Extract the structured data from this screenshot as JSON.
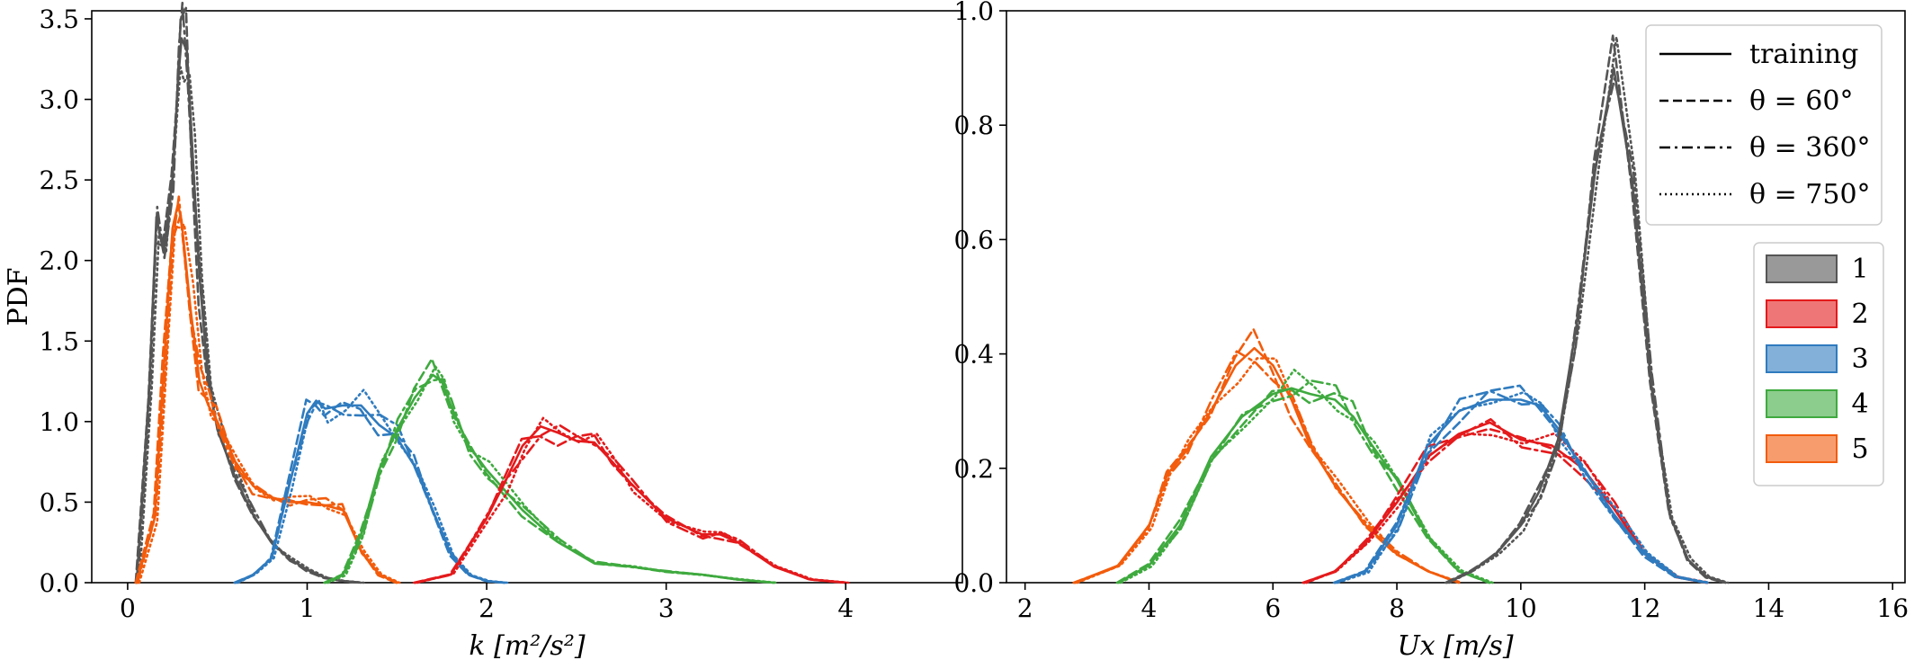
{
  "colors": {
    "1": "#555555",
    "2": "#e41a1c",
    "3": "#2f7bbf",
    "4": "#3faa3f",
    "5": "#f25c0c"
  },
  "chart_data": [
    {
      "type": "line",
      "title": "",
      "xlabel": "k [m²/s²]",
      "ylabel": "PDF",
      "xlim": [
        -0.2,
        4.65
      ],
      "ylim": [
        0,
        3.55
      ],
      "xticks": [
        0,
        1,
        2,
        3,
        4
      ],
      "xtick_labels": [
        "0",
        "1",
        "2",
        "3",
        "4"
      ],
      "yticks": [
        0.0,
        0.5,
        1.0,
        1.5,
        2.0,
        2.5,
        3.0,
        3.5
      ],
      "ytick_labels": [
        "0.0",
        "0.5",
        "1.0",
        "1.5",
        "2.0",
        "2.5",
        "3.0",
        "3.5"
      ],
      "grid": false,
      "series": [
        {
          "group": "1",
          "x": [
            0.05,
            0.12,
            0.16,
            0.2,
            0.25,
            0.28,
            0.3,
            0.33,
            0.36,
            0.4,
            0.45,
            0.5,
            0.6,
            0.7,
            0.8,
            0.9,
            1.0,
            1.1,
            1.2,
            1.3
          ],
          "y": [
            0,
            1.2,
            2.27,
            2.05,
            2.5,
            3.1,
            3.38,
            3.3,
            2.7,
            1.9,
            1.25,
            0.95,
            0.65,
            0.42,
            0.25,
            0.15,
            0.08,
            0.03,
            0.01,
            0
          ]
        },
        {
          "group": "5",
          "x": [
            0.05,
            0.15,
            0.2,
            0.25,
            0.28,
            0.3,
            0.35,
            0.4,
            0.45,
            0.5,
            0.6,
            0.7,
            0.8,
            0.9,
            1.0,
            1.1,
            1.2,
            1.3,
            1.4,
            1.5
          ],
          "y": [
            0,
            0.4,
            1.3,
            2.2,
            2.35,
            2.25,
            1.7,
            1.25,
            1.1,
            1.0,
            0.75,
            0.6,
            0.53,
            0.5,
            0.5,
            0.48,
            0.45,
            0.2,
            0.05,
            0
          ]
        },
        {
          "group": "3",
          "x": [
            0.6,
            0.7,
            0.8,
            0.9,
            1.0,
            1.05,
            1.1,
            1.2,
            1.3,
            1.4,
            1.5,
            1.6,
            1.7,
            1.8,
            1.9,
            2.0,
            2.1
          ],
          "y": [
            0,
            0.05,
            0.15,
            0.6,
            1.05,
            1.13,
            1.08,
            1.1,
            1.1,
            0.98,
            0.9,
            0.72,
            0.45,
            0.18,
            0.05,
            0.01,
            0
          ]
        },
        {
          "group": "4",
          "x": [
            1.1,
            1.2,
            1.3,
            1.4,
            1.5,
            1.6,
            1.7,
            1.75,
            1.8,
            1.9,
            2.0,
            2.2,
            2.4,
            2.6,
            2.8,
            3.0,
            3.2,
            3.4,
            3.6
          ],
          "y": [
            0,
            0.05,
            0.3,
            0.7,
            0.95,
            1.15,
            1.29,
            1.25,
            1.1,
            0.85,
            0.7,
            0.45,
            0.25,
            0.12,
            0.1,
            0.07,
            0.05,
            0.02,
            0
          ]
        },
        {
          "group": "2",
          "x": [
            1.6,
            1.8,
            2.0,
            2.1,
            2.2,
            2.3,
            2.4,
            2.5,
            2.6,
            2.7,
            2.8,
            3.0,
            3.2,
            3.3,
            3.4,
            3.6,
            3.8,
            4.0
          ],
          "y": [
            0,
            0.05,
            0.4,
            0.62,
            0.85,
            0.97,
            0.93,
            0.88,
            0.87,
            0.75,
            0.62,
            0.4,
            0.3,
            0.3,
            0.25,
            0.1,
            0.02,
            0
          ]
        }
      ]
    },
    {
      "type": "line",
      "title": "",
      "xlabel": "Ux [m/s]",
      "ylabel": "",
      "xlim": [
        1.7,
        16.2
      ],
      "ylim": [
        0,
        1.0
      ],
      "xticks": [
        2,
        4,
        6,
        8,
        10,
        12,
        14,
        16
      ],
      "xtick_labels": [
        "2",
        "4",
        "6",
        "8",
        "10",
        "12",
        "14",
        "16"
      ],
      "yticks": [
        0.0,
        0.2,
        0.4,
        0.6,
        0.8,
        1.0
      ],
      "ytick_labels": [
        "0.0",
        "0.2",
        "0.4",
        "0.6",
        "0.8",
        "1.0"
      ],
      "grid": false,
      "legend_position": "top-right",
      "series": [
        {
          "group": "5",
          "x": [
            2.8,
            3.5,
            4.0,
            4.3,
            4.6,
            5.0,
            5.4,
            5.7,
            6.0,
            6.3,
            6.6,
            7.0,
            7.5,
            8.0,
            8.5,
            9.0
          ],
          "y": [
            0,
            0.03,
            0.1,
            0.19,
            0.23,
            0.3,
            0.38,
            0.41,
            0.38,
            0.32,
            0.24,
            0.17,
            0.1,
            0.05,
            0.02,
            0
          ]
        },
        {
          "group": "4",
          "x": [
            3.5,
            4.0,
            4.5,
            5.0,
            5.5,
            6.0,
            6.3,
            6.6,
            7.0,
            7.3,
            7.6,
            8.0,
            8.5,
            9.0,
            9.5
          ],
          "y": [
            0,
            0.03,
            0.1,
            0.22,
            0.29,
            0.33,
            0.34,
            0.33,
            0.32,
            0.29,
            0.24,
            0.18,
            0.08,
            0.02,
            0
          ]
        },
        {
          "group": "2",
          "x": [
            6.5,
            7.0,
            7.5,
            8.0,
            8.5,
            9.0,
            9.5,
            10.0,
            10.5,
            11.0,
            11.5,
            12.0,
            12.5,
            13.0
          ],
          "y": [
            0,
            0.02,
            0.07,
            0.14,
            0.22,
            0.26,
            0.28,
            0.25,
            0.24,
            0.2,
            0.13,
            0.05,
            0.01,
            0
          ]
        },
        {
          "group": "3",
          "x": [
            7.0,
            7.5,
            8.0,
            8.5,
            9.0,
            9.5,
            10.0,
            10.3,
            10.6,
            11.0,
            11.5,
            12.0,
            12.5,
            13.0
          ],
          "y": [
            0,
            0.02,
            0.1,
            0.24,
            0.3,
            0.32,
            0.32,
            0.31,
            0.27,
            0.2,
            0.12,
            0.05,
            0.01,
            0
          ]
        },
        {
          "group": "1",
          "x": [
            8.8,
            9.2,
            9.6,
            10.0,
            10.3,
            10.6,
            10.9,
            11.2,
            11.5,
            11.8,
            12.1,
            12.4,
            12.7,
            13.0,
            13.3
          ],
          "y": [
            0,
            0.02,
            0.05,
            0.1,
            0.16,
            0.25,
            0.45,
            0.72,
            0.9,
            0.7,
            0.35,
            0.12,
            0.04,
            0.01,
            0
          ]
        }
      ],
      "linestyle_legend": [
        {
          "label": "training",
          "style": "solid"
        },
        {
          "label": "θ = 60°",
          "style": "dashed"
        },
        {
          "label": "θ = 360°",
          "style": "dashdot"
        },
        {
          "label": "θ = 750°",
          "style": "dotted"
        }
      ],
      "group_legend": [
        {
          "label": "1",
          "group": "1"
        },
        {
          "label": "2",
          "group": "2"
        },
        {
          "label": "3",
          "group": "3"
        },
        {
          "label": "4",
          "group": "4"
        },
        {
          "label": "5",
          "group": "5"
        }
      ]
    }
  ]
}
